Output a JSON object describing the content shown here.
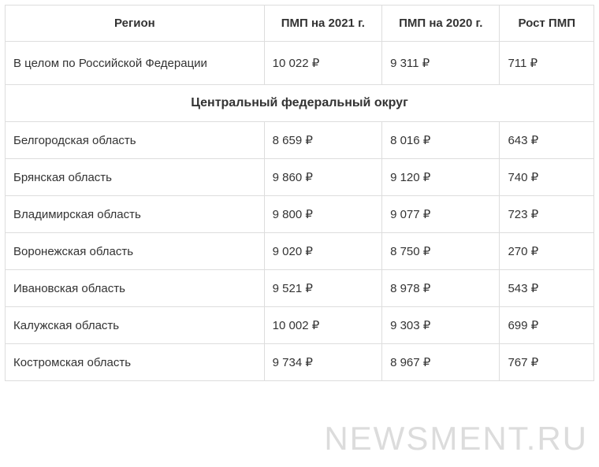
{
  "table": {
    "columns": [
      "Регион",
      "ПМП на 2021 г.",
      "ПМП на 2020 г.",
      "Рост ПМП"
    ],
    "column_widths_pct": [
      44,
      20,
      20,
      16
    ],
    "border_color": "#dddddd",
    "text_color": "#333333",
    "background_color": "#ffffff",
    "header_fontsize": 15,
    "cell_fontsize": 15,
    "cell_padding_v": 14,
    "cell_padding_h": 10,
    "summary_row": {
      "region": "В целом по Российской Федерации",
      "pmp_2021": "10 022 ₽",
      "pmp_2020": "9 311 ₽",
      "growth": "711 ₽"
    },
    "section_header": "Центральный федеральный округ",
    "rows": [
      {
        "region": "Белгородская область",
        "pmp_2021": "8 659 ₽",
        "pmp_2020": "8 016 ₽",
        "growth": "643 ₽"
      },
      {
        "region": "Брянская область",
        "pmp_2021": "9 860 ₽",
        "pmp_2020": "9 120 ₽",
        "growth": "740 ₽"
      },
      {
        "region": "Владимирская область",
        "pmp_2021": "9 800 ₽",
        "pmp_2020": "9 077 ₽",
        "growth": "723 ₽"
      },
      {
        "region": "Воронежская область",
        "pmp_2021": "9 020 ₽",
        "pmp_2020": "8 750 ₽",
        "growth": "270 ₽"
      },
      {
        "region": "Ивановская область",
        "pmp_2021": "9 521 ₽",
        "pmp_2020": "8 978 ₽",
        "growth": "543 ₽"
      },
      {
        "region": "Калужская область",
        "pmp_2021": "10 002 ₽",
        "pmp_2020": "9 303 ₽",
        "growth": "699 ₽"
      },
      {
        "region": "Костромская область",
        "pmp_2021": "9 734 ₽",
        "pmp_2020": "8 967 ₽",
        "growth": "767 ₽"
      }
    ]
  },
  "watermark": {
    "text": "NEWSMENT.RU",
    "color": "#dcdcdc",
    "fontsize": 42
  }
}
